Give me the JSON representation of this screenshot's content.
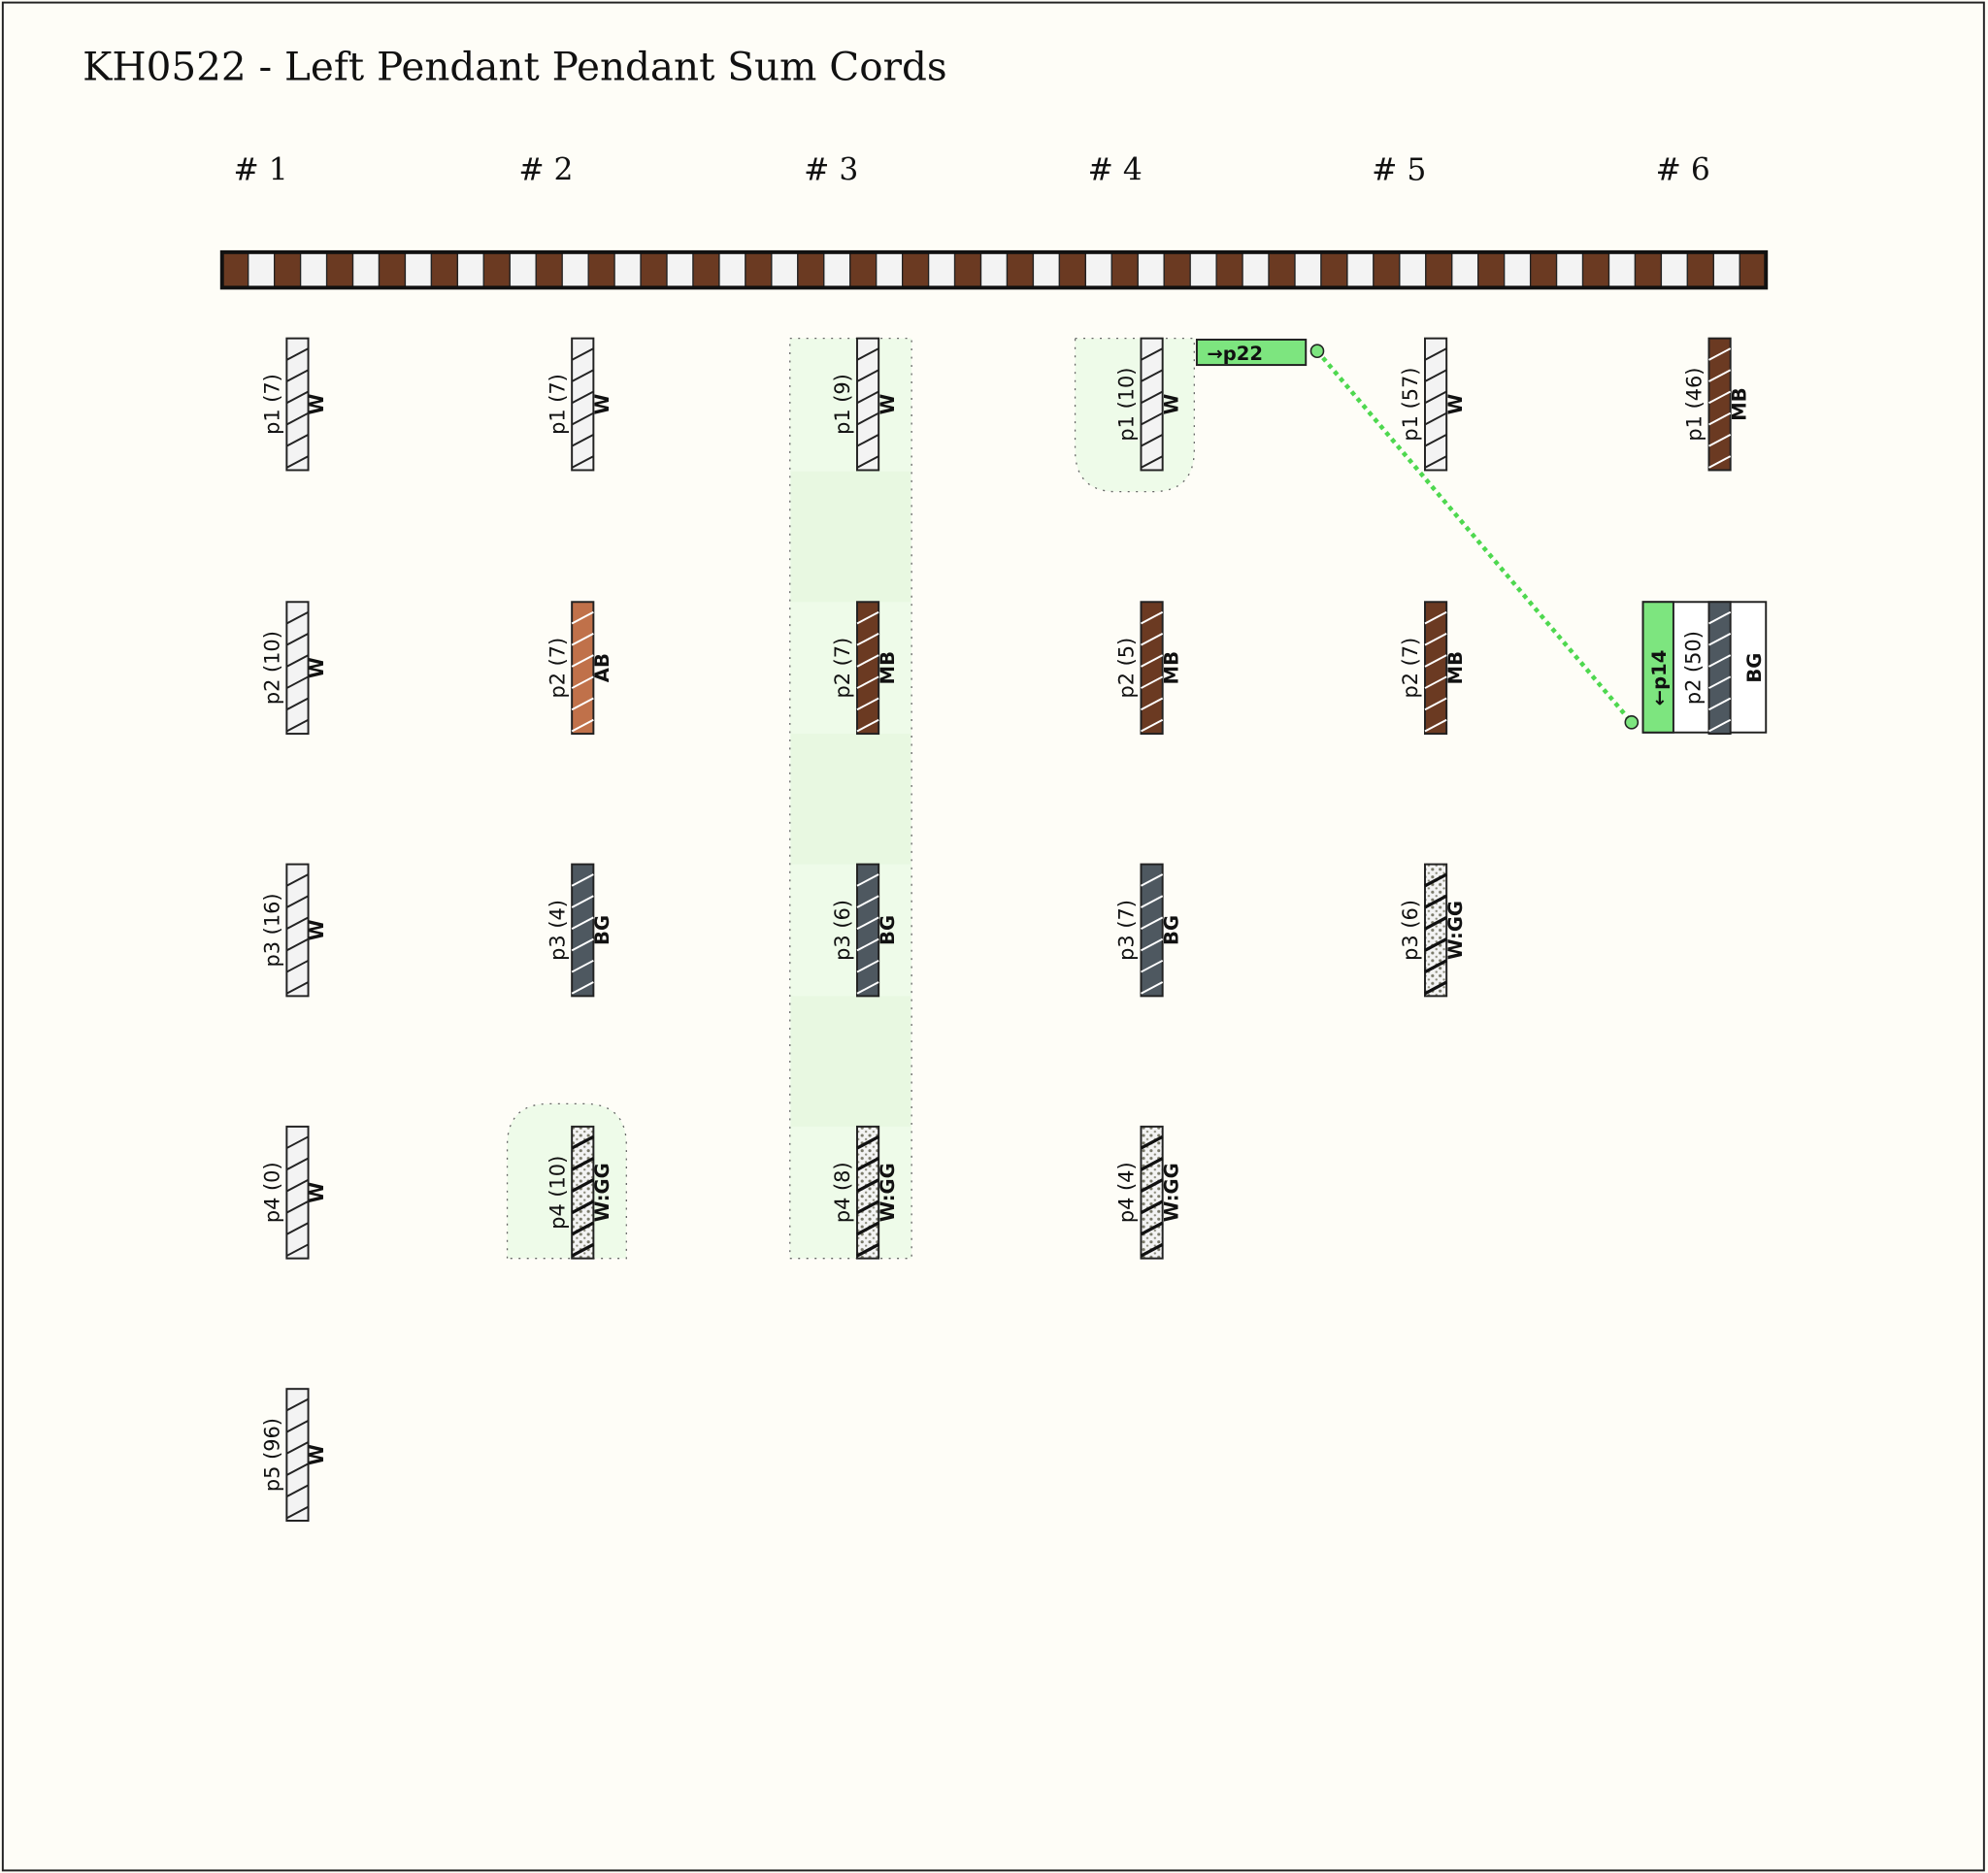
{
  "title": "KH0522 - Left Pendant Pendant Sum Cords",
  "colors": {
    "W": "#f3f3f3",
    "MB": "#6b3a22",
    "AB": "#c0714a",
    "BG": "#4e5860",
    "W:GG": "#f3f3f3",
    "link": "#7de57f",
    "highlight": "#eefbe9",
    "primary_cord_dark": "#6b3a22",
    "primary_cord_light": "#f3f3f3"
  },
  "groups": [
    {
      "header": "# 1",
      "cords": [
        {
          "label": "p1 (7)",
          "color": "W"
        },
        {
          "label": "p2 (10)",
          "color": "W"
        },
        {
          "label": "p3 (16)",
          "color": "W"
        },
        {
          "label": "p4 (0)",
          "color": "W"
        },
        {
          "label": "p5 (96)",
          "color": "W"
        }
      ]
    },
    {
      "header": "# 2",
      "cords": [
        {
          "label": "p1 (7)",
          "color": "W"
        },
        {
          "label": "p2 (7)",
          "color": "AB"
        },
        {
          "label": "p3 (4)",
          "color": "BG"
        },
        {
          "label": "p4 (10)",
          "color": "W:GG",
          "highlight": true
        }
      ]
    },
    {
      "header": "# 3",
      "cords": [
        {
          "label": "p1 (9)",
          "color": "W",
          "highlight": true
        },
        {
          "label": "p2 (7)",
          "color": "MB",
          "highlight": true
        },
        {
          "label": "p3 (6)",
          "color": "BG",
          "highlight": true
        },
        {
          "label": "p4 (8)",
          "color": "W:GG",
          "highlight": true
        }
      ]
    },
    {
      "header": "# 4",
      "cords": [
        {
          "label": "p1 (10)",
          "color": "W",
          "highlight": true,
          "link_to": "→p22"
        },
        {
          "label": "p2 (5)",
          "color": "MB"
        },
        {
          "label": "p3 (7)",
          "color": "BG"
        },
        {
          "label": "p4 (4)",
          "color": "W:GG"
        }
      ]
    },
    {
      "header": "# 5",
      "cords": [
        {
          "label": "p1 (57)",
          "color": "W"
        },
        {
          "label": "p2 (7)",
          "color": "MB"
        },
        {
          "label": "p3 (6)",
          "color": "W:GG"
        }
      ]
    },
    {
      "header": "# 6",
      "cords": [
        {
          "label": "p1 (46)",
          "color": "MB"
        },
        {
          "label": "p2 (50)",
          "color": "BG",
          "link_from": "←p14"
        }
      ]
    }
  ]
}
